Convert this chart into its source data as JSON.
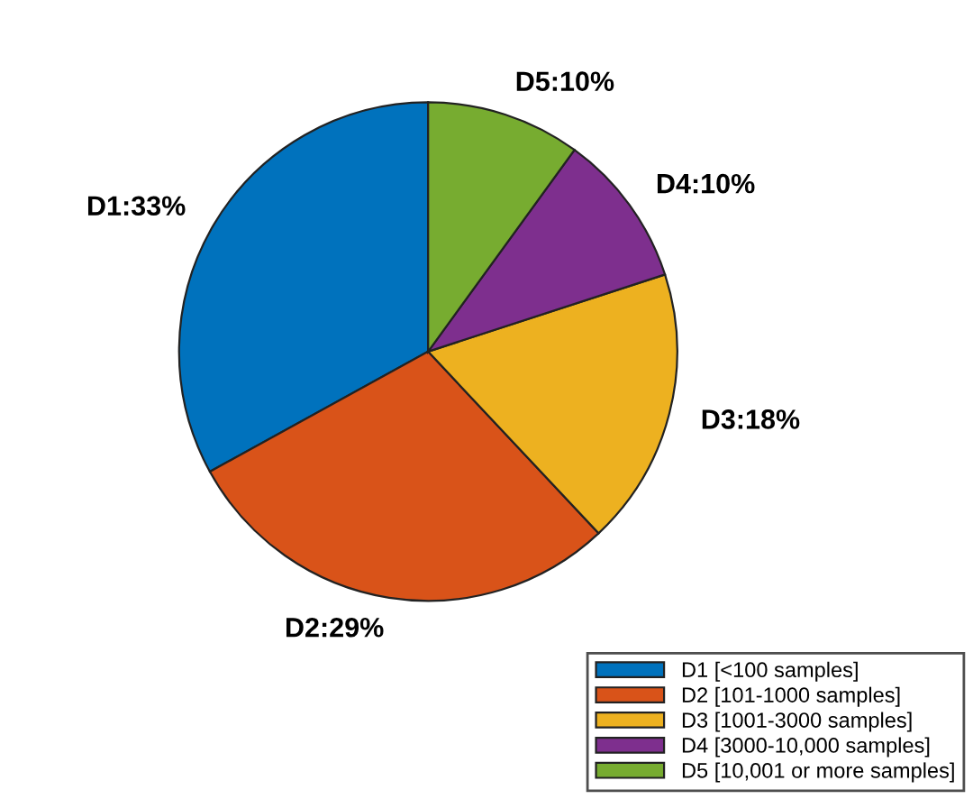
{
  "chart_data": {
    "type": "pie",
    "categories": [
      "D1 [<100 samples]",
      "D2 [101-1000 samples]",
      "D3 [1001-3000 samples]",
      "D4 [3000-10,000 samples]",
      "D5 [10,001 or more samples]"
    ],
    "values": [
      33,
      29,
      18,
      10,
      10
    ],
    "colors": [
      "#0072bd",
      "#d95319",
      "#edb120",
      "#7e2f8e",
      "#77ac30"
    ],
    "value_labels": [
      "D1:33%",
      "D2:29%",
      "D3:18%",
      "D4:10%",
      "D5:10%"
    ],
    "legend": "bottom right"
  }
}
